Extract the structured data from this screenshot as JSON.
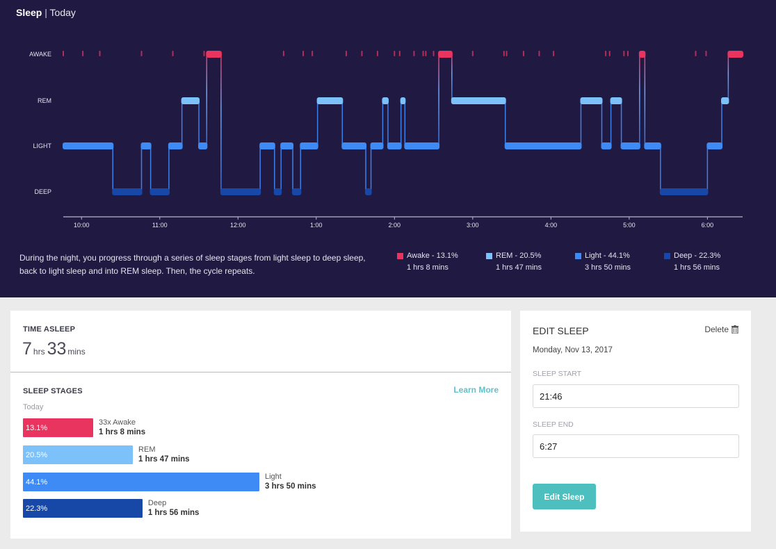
{
  "header": {
    "title": "Sleep",
    "separator": "|",
    "period": "Today"
  },
  "colors": {
    "awake": "#e8345f",
    "rem": "#7dc1fb",
    "light": "#3f8bf5",
    "deep": "#1848a7",
    "hero_bg": "#201a42",
    "accent": "#4dbfbf"
  },
  "chart_data": {
    "type": "line",
    "subtype": "step-hypnogram",
    "title": "Sleep | Today",
    "y_levels": [
      "AWAKE",
      "REM",
      "LIGHT",
      "DEEP"
    ],
    "x_ticks": [
      "10:00",
      "11:00",
      "12:00",
      "1:00",
      "2:00",
      "3:00",
      "4:00",
      "5:00",
      "6:00"
    ],
    "x_tick_minutes_from_start": [
      14,
      74,
      134,
      194,
      254,
      314,
      374,
      434,
      494
    ],
    "start_time": "21:46",
    "end_time": "6:27",
    "total_minutes": 521,
    "segments": [
      {
        "stage": "LIGHT",
        "start": 0,
        "end": 38
      },
      {
        "stage": "DEEP",
        "start": 38,
        "end": 60
      },
      {
        "stage": "LIGHT",
        "start": 60,
        "end": 67
      },
      {
        "stage": "DEEP",
        "start": 67,
        "end": 81
      },
      {
        "stage": "LIGHT",
        "start": 81,
        "end": 91
      },
      {
        "stage": "REM",
        "start": 91,
        "end": 104
      },
      {
        "stage": "LIGHT",
        "start": 104,
        "end": 110
      },
      {
        "stage": "AWAKE",
        "start": 110,
        "end": 121
      },
      {
        "stage": "DEEP",
        "start": 121,
        "end": 151
      },
      {
        "stage": "LIGHT",
        "start": 151,
        "end": 162
      },
      {
        "stage": "DEEP",
        "start": 162,
        "end": 167
      },
      {
        "stage": "LIGHT",
        "start": 167,
        "end": 176
      },
      {
        "stage": "DEEP",
        "start": 176,
        "end": 182
      },
      {
        "stage": "LIGHT",
        "start": 182,
        "end": 195
      },
      {
        "stage": "REM",
        "start": 195,
        "end": 214
      },
      {
        "stage": "LIGHT",
        "start": 214,
        "end": 232
      },
      {
        "stage": "DEEP",
        "start": 232,
        "end": 236
      },
      {
        "stage": "LIGHT",
        "start": 236,
        "end": 245
      },
      {
        "stage": "REM",
        "start": 245,
        "end": 249
      },
      {
        "stage": "LIGHT",
        "start": 249,
        "end": 259
      },
      {
        "stage": "REM",
        "start": 259,
        "end": 262
      },
      {
        "stage": "LIGHT",
        "start": 262,
        "end": 288
      },
      {
        "stage": "AWAKE",
        "start": 288,
        "end": 298
      },
      {
        "stage": "REM",
        "start": 298,
        "end": 339
      },
      {
        "stage": "LIGHT",
        "start": 339,
        "end": 397
      },
      {
        "stage": "REM",
        "start": 397,
        "end": 413
      },
      {
        "stage": "LIGHT",
        "start": 413,
        "end": 420
      },
      {
        "stage": "REM",
        "start": 420,
        "end": 428
      },
      {
        "stage": "LIGHT",
        "start": 428,
        "end": 442
      },
      {
        "stage": "AWAKE",
        "start": 442,
        "end": 446
      },
      {
        "stage": "LIGHT",
        "start": 446,
        "end": 458
      },
      {
        "stage": "DEEP",
        "start": 458,
        "end": 494
      },
      {
        "stage": "LIGHT",
        "start": 494,
        "end": 505
      },
      {
        "stage": "REM",
        "start": 505,
        "end": 510
      },
      {
        "stage": "AWAKE",
        "start": 510,
        "end": 521
      }
    ],
    "brief_awakenings_minutes": [
      0,
      15,
      28,
      60,
      84,
      108,
      169,
      184,
      191,
      217,
      229,
      241,
      254,
      258,
      269,
      276,
      278,
      284,
      314,
      338,
      340,
      353,
      365,
      376,
      416,
      419,
      430,
      433,
      485,
      493
    ],
    "legend": [
      {
        "stage": "Awake",
        "percent": 13.1,
        "label": "Awake - 13.1%",
        "duration": "1 hrs 8 mins"
      },
      {
        "stage": "REM",
        "percent": 20.5,
        "label": "REM - 20.5%",
        "duration": "1 hrs 47 mins"
      },
      {
        "stage": "Light",
        "percent": 44.1,
        "label": "Light - 44.1%",
        "duration": "3 hrs 50 mins"
      },
      {
        "stage": "Deep",
        "percent": 22.3,
        "label": "Deep - 22.3%",
        "duration": "1 hrs 56 mins"
      }
    ],
    "legend_position": "bottom-right"
  },
  "hero": {
    "description": "During the night, you progress through a series of sleep stages from light sleep to deep sleep, back to light sleep and into REM sleep. Then, the cycle repeats."
  },
  "time_asleep": {
    "label": "TIME ASLEEP",
    "hours": "7",
    "hours_unit": "hrs",
    "minutes": "33",
    "minutes_unit": "mins"
  },
  "sleep_stages": {
    "label": "SLEEP STAGES",
    "sub": "Today",
    "learn_more": "Learn More",
    "bars": [
      {
        "key": "awake",
        "percent": 13.1,
        "pct_label": "13.1%",
        "name": "33x Awake",
        "duration": "1 hrs 8 mins"
      },
      {
        "key": "rem",
        "percent": 20.5,
        "pct_label": "20.5%",
        "name": "REM",
        "duration": "1 hrs 47 mins"
      },
      {
        "key": "light",
        "percent": 44.1,
        "pct_label": "44.1%",
        "name": "Light",
        "duration": "3 hrs 50 mins"
      },
      {
        "key": "deep",
        "percent": 22.3,
        "pct_label": "22.3%",
        "name": "Deep",
        "duration": "1 hrs 56 mins"
      }
    ]
  },
  "edit_sleep": {
    "title": "EDIT SLEEP",
    "delete_label": "Delete",
    "date": "Monday, Nov 13, 2017",
    "start_label": "SLEEP START",
    "start_value": "21:46",
    "end_label": "SLEEP END",
    "end_value": "6:27",
    "button_label": "Edit Sleep"
  }
}
